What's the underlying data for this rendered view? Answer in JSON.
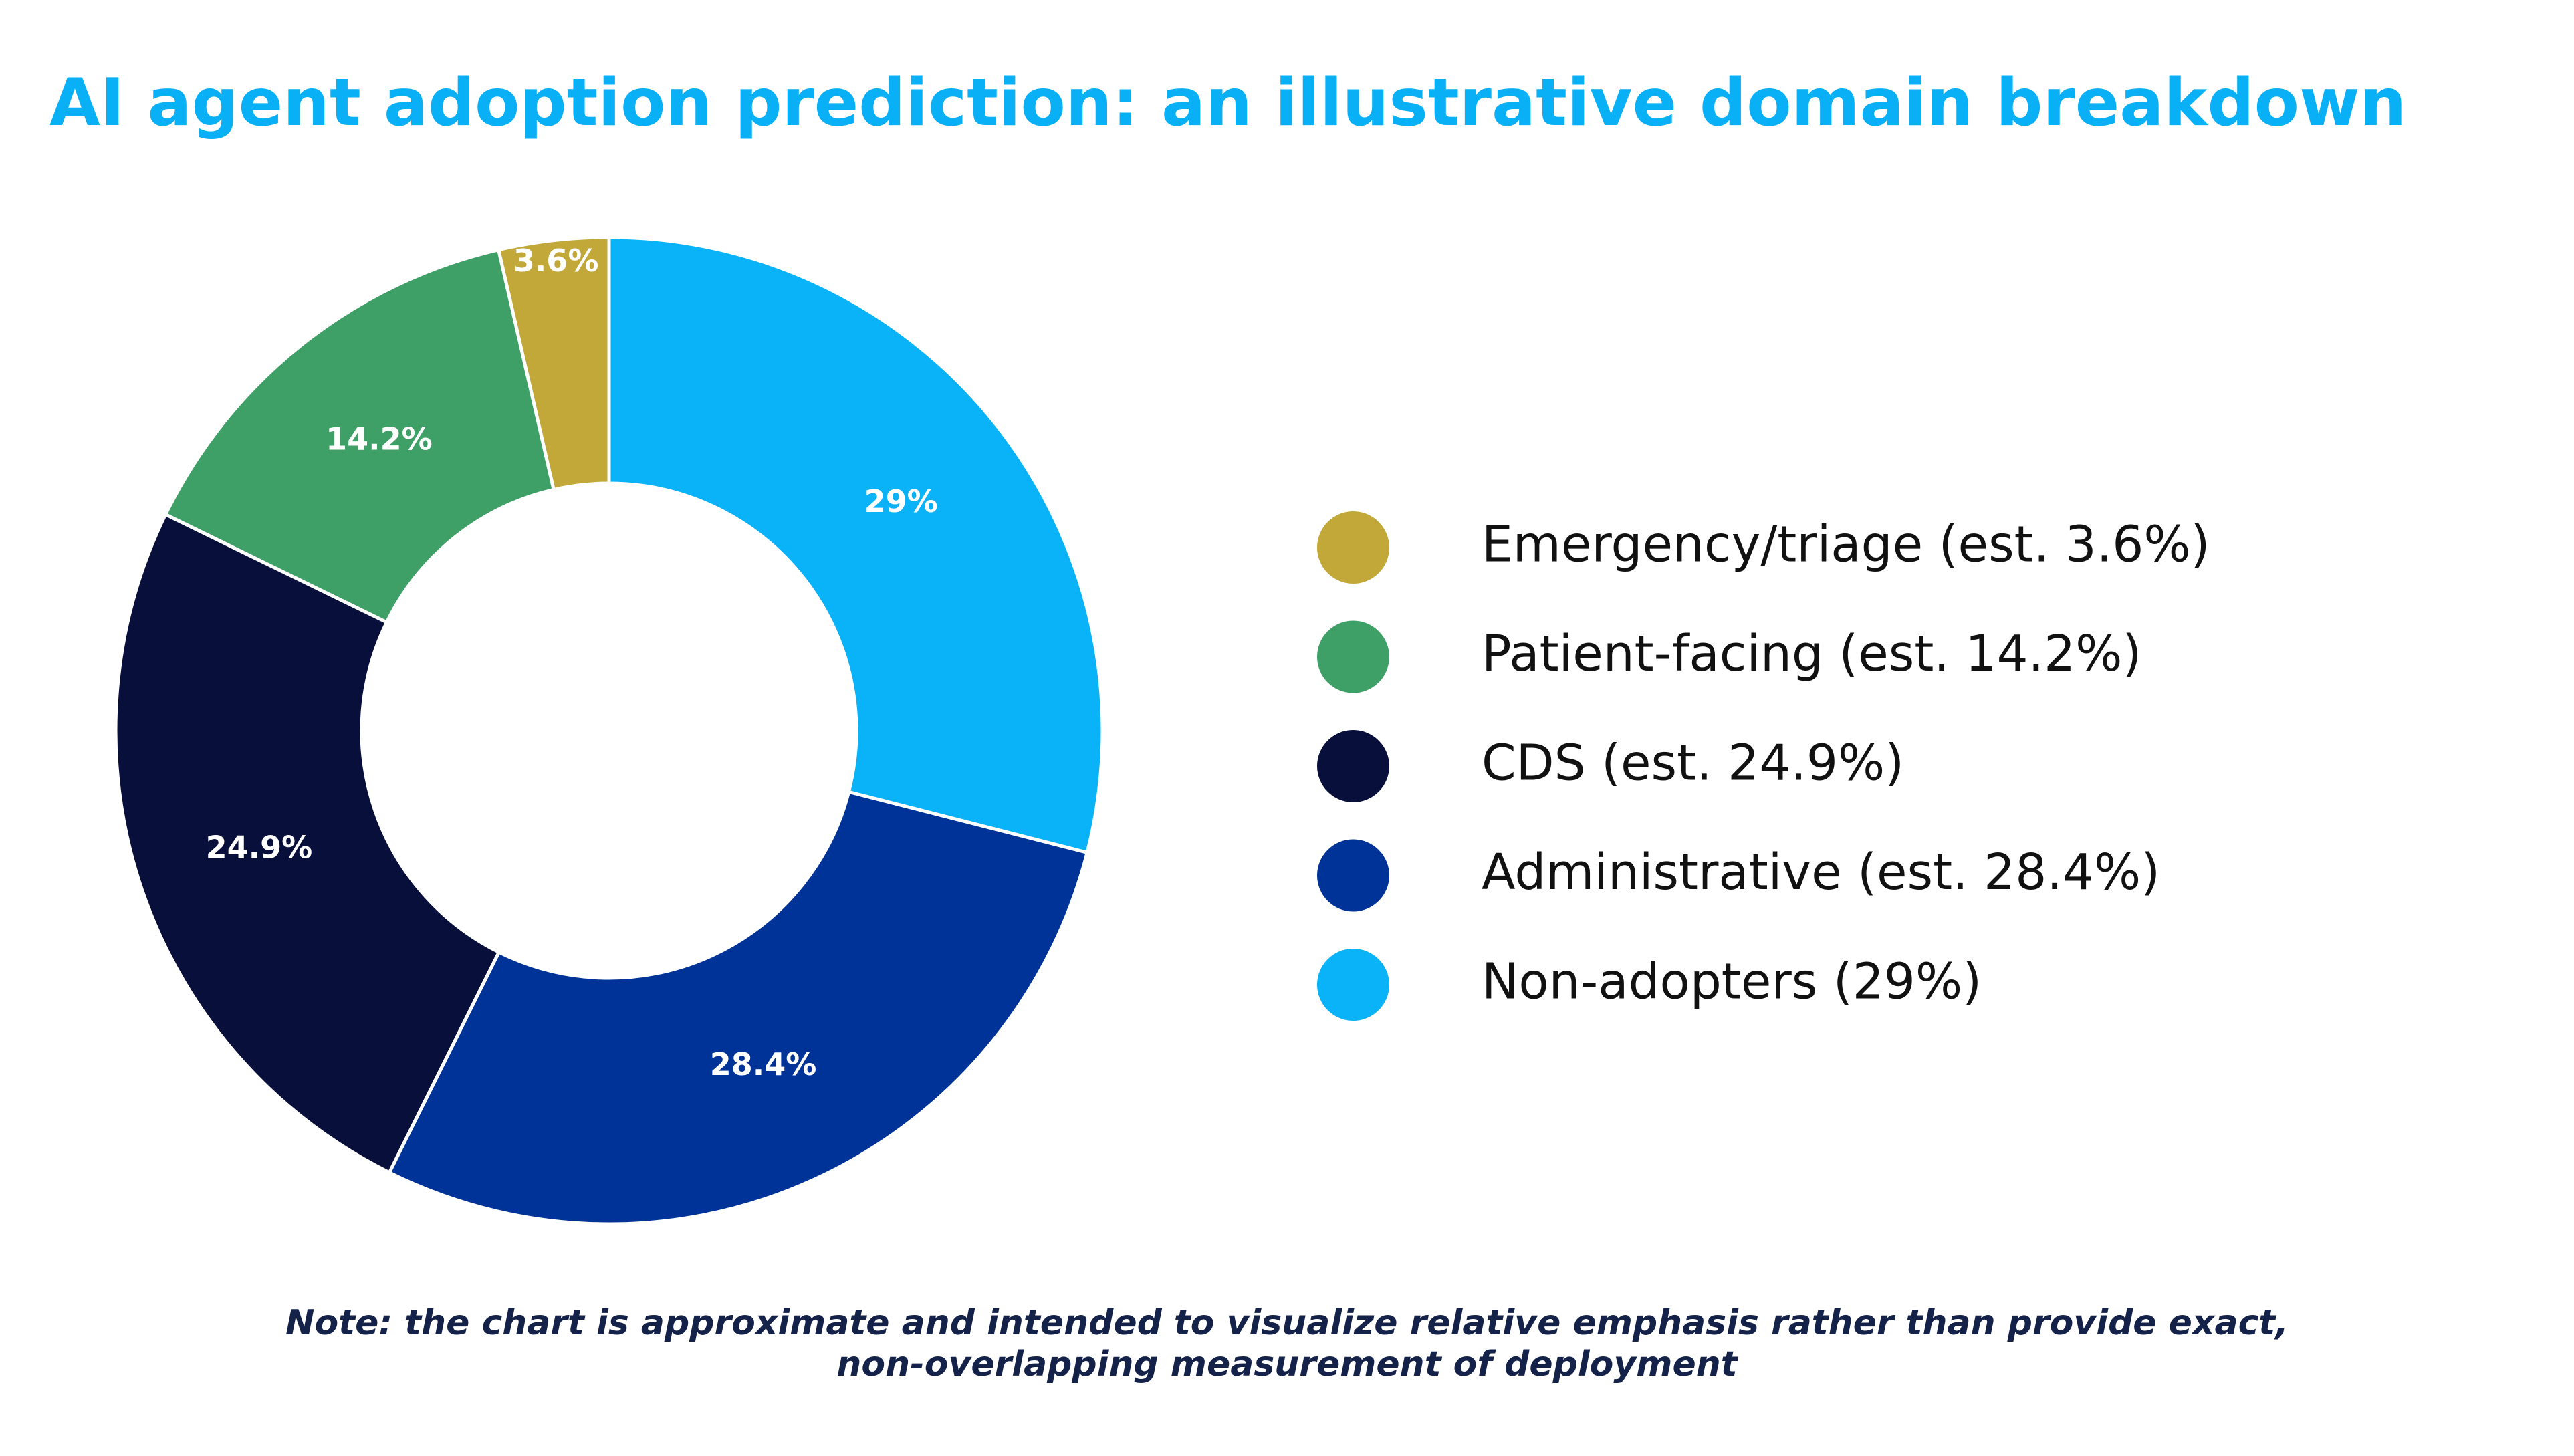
{
  "chart_data": {
    "type": "donut",
    "title": "AI agent adoption prediction: an illustrative domain breakdown",
    "categories": [
      "Emergency/triage (est. 3.6%)",
      "Patient-facing (est. 14.2%)",
      "CDS (est. 24.9%)",
      "Administrative (est. 28.4%)",
      "Non-adopters (29%)"
    ],
    "values": [
      3.6,
      14.2,
      24.9,
      28.4,
      29
    ],
    "value_labels": [
      "3.6%",
      "14.2%",
      "24.9%",
      "28.4%",
      "29%"
    ],
    "colors": [
      "#c2a838",
      "#3ea066",
      "#070f3a",
      "#003398",
      "#0ab2f8"
    ],
    "legend": "right",
    "note": [
      "Note: the chart is approximate and intended to visualize relative emphasis rather than provide exact,",
      "non-overlapping measurement of deployment"
    ]
  }
}
